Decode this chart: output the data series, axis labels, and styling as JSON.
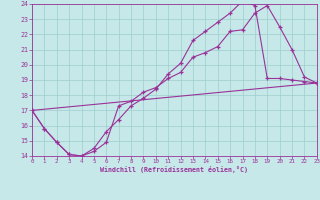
{
  "xlabel": "Windchill (Refroidissement éolien,°C)",
  "bg_color": "#c6e8e8",
  "line_color": "#993399",
  "xlim": [
    0,
    23
  ],
  "ylim": [
    14,
    24
  ],
  "xticks": [
    0,
    1,
    2,
    3,
    4,
    5,
    6,
    7,
    8,
    9,
    10,
    11,
    12,
    13,
    14,
    15,
    16,
    17,
    18,
    19,
    20,
    21,
    22,
    23
  ],
  "yticks": [
    14,
    15,
    16,
    17,
    18,
    19,
    20,
    21,
    22,
    23,
    24
  ],
  "line1_x": [
    0,
    1,
    2,
    3,
    4,
    5,
    6,
    7,
    8,
    9,
    10,
    11,
    12,
    13,
    14,
    15,
    16,
    17,
    18,
    19,
    20,
    21,
    22,
    23
  ],
  "line1_y": [
    17.0,
    15.8,
    14.9,
    14.1,
    14.0,
    14.3,
    14.9,
    17.3,
    17.6,
    18.2,
    18.5,
    19.1,
    19.5,
    20.5,
    20.8,
    21.2,
    22.2,
    22.3,
    23.4,
    23.9,
    22.5,
    21.0,
    19.2,
    18.8
  ],
  "line2_x": [
    0,
    1,
    2,
    3,
    4,
    5,
    6,
    7,
    8,
    9,
    10,
    11,
    12,
    13,
    14,
    15,
    16,
    17,
    18,
    19,
    20,
    21,
    22,
    23
  ],
  "line2_y": [
    17.0,
    15.8,
    14.9,
    14.1,
    14.0,
    14.5,
    15.6,
    16.4,
    17.3,
    17.8,
    18.4,
    19.4,
    20.1,
    21.6,
    22.2,
    22.8,
    23.4,
    24.2,
    23.9,
    19.1,
    19.1,
    19.0,
    18.9,
    18.8
  ],
  "line3_x": [
    0,
    23
  ],
  "line3_y": [
    17.0,
    18.8
  ],
  "grid_color": "#9ecece"
}
